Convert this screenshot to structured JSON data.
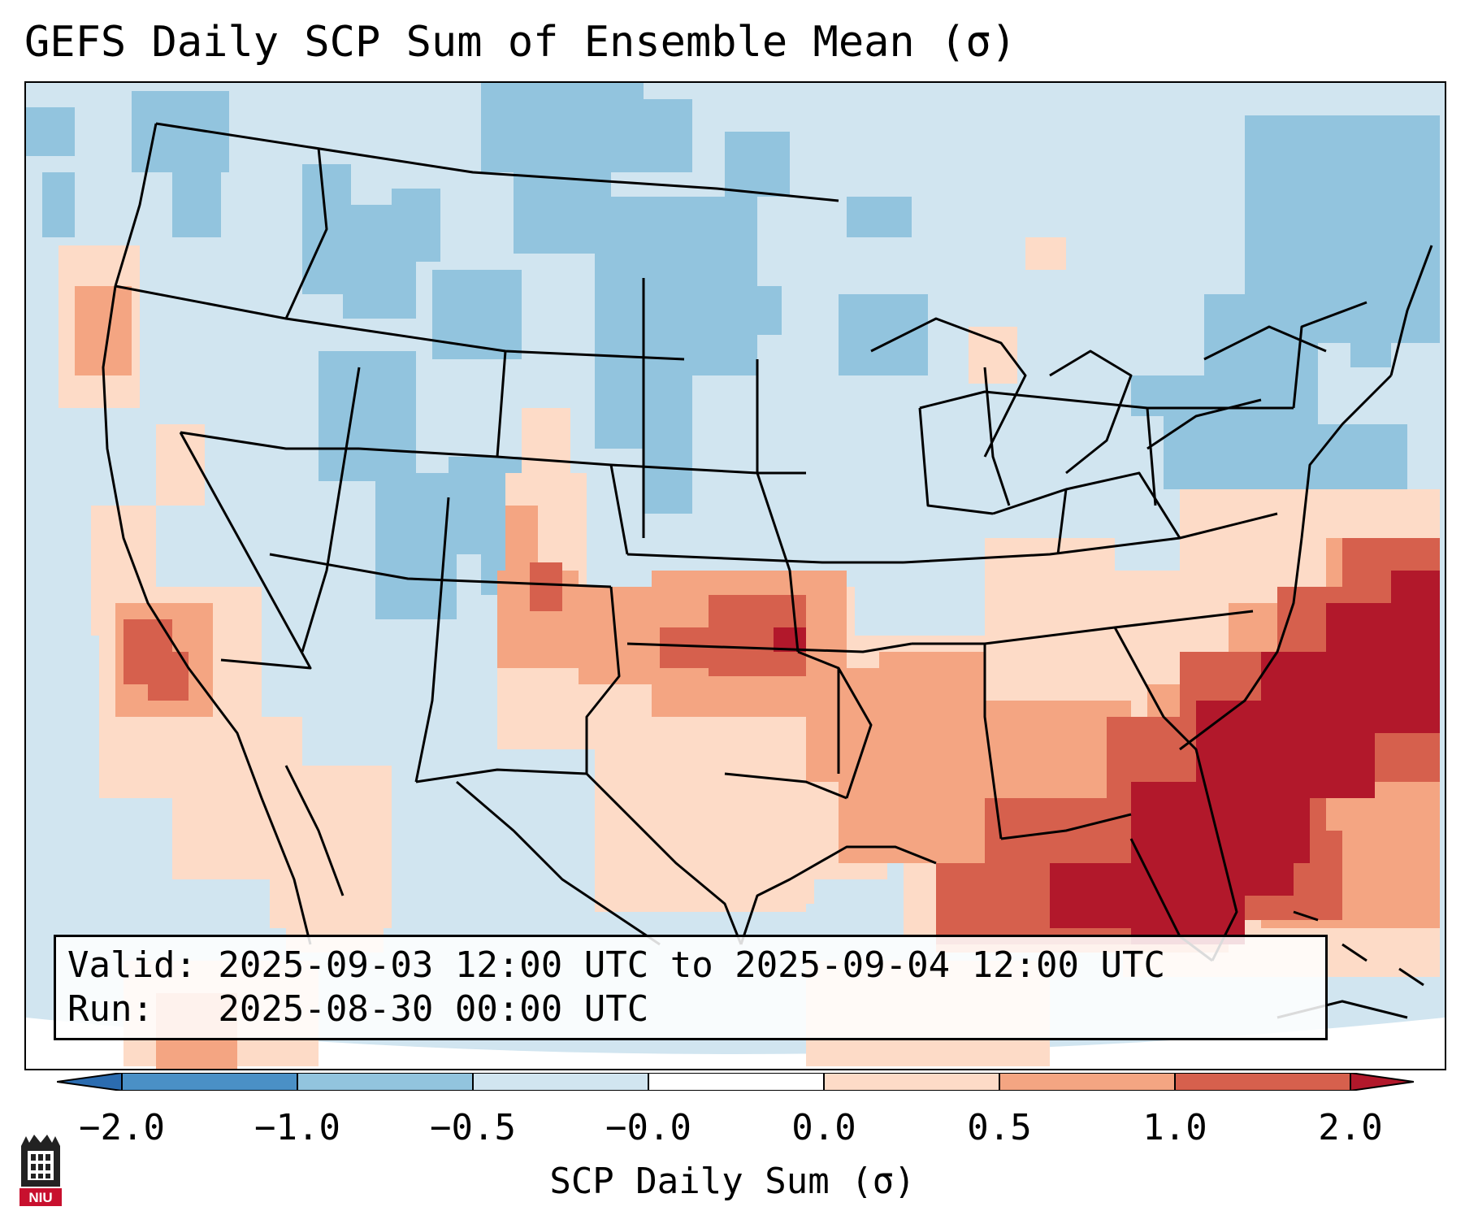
{
  "title": "GEFS Daily SCP Sum of Ensemble Mean (σ)",
  "info": {
    "valid_line": "Valid: 2025-09-03 12:00 UTC to 2025-09-04 12:00 UTC",
    "run_line": "Run:   2025-08-30 00:00 UTC"
  },
  "colorbar": {
    "label": "SCP Daily Sum (σ)",
    "ticks": [
      "−2.0",
      "−1.0",
      "−0.5",
      "−0.0",
      "0.0",
      "0.5",
      "1.0",
      "2.0"
    ],
    "colors": [
      "#2b6cb0",
      "#4a90c6",
      "#92c4de",
      "#d1e5f0",
      "#fddbc7",
      "#f4a582",
      "#d6604d",
      "#b2182b"
    ],
    "extend": "both"
  },
  "logo": {
    "text": "NIU",
    "icon": "university-tower-icon",
    "color": "#c8102e"
  },
  "colors": {
    "ocean_land_base": "#d1e5f0",
    "weak_negative": "#92c4de",
    "weak_positive": "#fddbc7",
    "moderate_positive": "#f4a582",
    "strong_positive": "#d6604d",
    "very_strong_positive": "#b2182b"
  }
}
